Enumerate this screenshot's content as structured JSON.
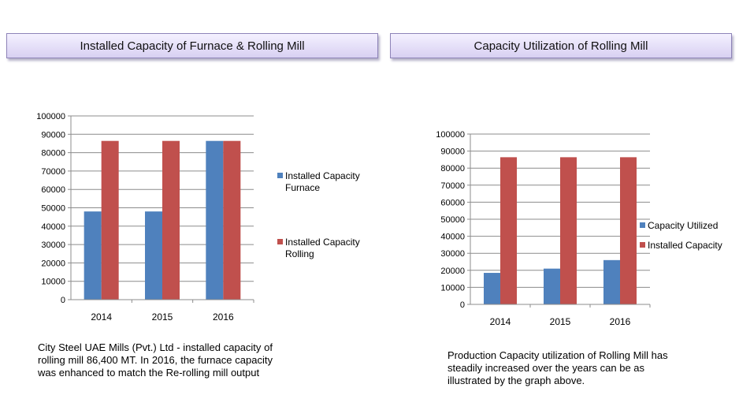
{
  "headers": {
    "left": "Installed Capacity of Furnace & Rolling Mill",
    "right": "Capacity Utilization of Rolling Mill"
  },
  "captions": {
    "left": "City Steel UAE Mills (Pvt.) Ltd - installed capacity of rolling mill 86,400 MT. In 2016, the furnace capacity was enhanced to match the Re-rolling mill output",
    "right": "Production Capacity utilization of Rolling Mill has steadily increased over the years  can be as illustrated by the graph above."
  },
  "chart_data": [
    {
      "type": "bar",
      "categories": [
        "2014",
        "2015",
        "2016"
      ],
      "series": [
        {
          "name": "Installed Capacity Furnace",
          "values": [
            48000,
            48000,
            86400
          ],
          "color": "#4f81bd"
        },
        {
          "name": "Installed Capacity Rolling",
          "values": [
            86400,
            86400,
            86400
          ],
          "color": "#c0504d"
        }
      ],
      "ylim": [
        0,
        100000
      ],
      "yticks": [
        0,
        10000,
        20000,
        30000,
        40000,
        50000,
        60000,
        70000,
        80000,
        90000,
        100000
      ],
      "grid": true,
      "legend": "right"
    },
    {
      "type": "bar",
      "categories": [
        "2014",
        "2015",
        "2016"
      ],
      "series": [
        {
          "name": "Capacity Utilized",
          "values": [
            18500,
            21000,
            26000
          ],
          "color": "#4f81bd"
        },
        {
          "name": "Installed Capacity",
          "values": [
            86400,
            86400,
            86400
          ],
          "color": "#c0504d"
        }
      ],
      "ylim": [
        0,
        100000
      ],
      "yticks": [
        0,
        10000,
        20000,
        30000,
        40000,
        50000,
        60000,
        70000,
        80000,
        90000,
        100000
      ],
      "grid": true,
      "legend": "right"
    }
  ]
}
